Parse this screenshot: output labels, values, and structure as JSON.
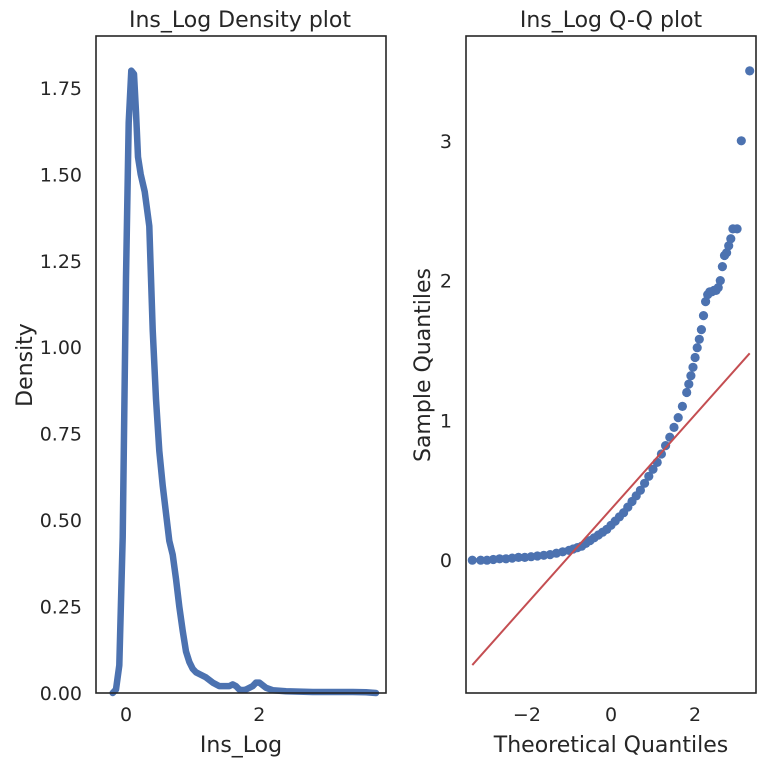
{
  "chart_data": [
    {
      "type": "line",
      "title": "Ins_Log Density plot",
      "xlabel": "Ins_Log",
      "ylabel": "Density",
      "xlim": [
        -0.45,
        3.9
      ],
      "ylim": [
        0,
        1.9
      ],
      "xticks": [
        0,
        2
      ],
      "xtick_labels": [
        "0",
        "2"
      ],
      "yticks": [
        0,
        0.25,
        0.5,
        0.75,
        1.0,
        1.25,
        1.5,
        1.75
      ],
      "ytick_labels": [
        "0.00",
        "0.25",
        "0.50",
        "0.75",
        "1.00",
        "1.25",
        "1.50",
        "1.75"
      ],
      "grid": false,
      "line_color": "#4c72b0",
      "series": [
        {
          "x": [
            -0.2,
            -0.15,
            -0.1,
            -0.05,
            0,
            0.04,
            0.08,
            0.12,
            0.15,
            0.18,
            0.22,
            0.28,
            0.35,
            0.4,
            0.45,
            0.5,
            0.55,
            0.6,
            0.65,
            0.7,
            0.75,
            0.8,
            0.85,
            0.9,
            0.95,
            1.0,
            1.05,
            1.1,
            1.2,
            1.3,
            1.4,
            1.5,
            1.55,
            1.6,
            1.65,
            1.7,
            1.75,
            1.8,
            1.9,
            1.95,
            2.0,
            2.1,
            2.2,
            2.4,
            2.6,
            2.8,
            3.0,
            3.2,
            3.4,
            3.6,
            3.75
          ],
          "y": [
            0,
            0.01,
            0.08,
            0.45,
            1.2,
            1.65,
            1.8,
            1.79,
            1.68,
            1.55,
            1.5,
            1.45,
            1.35,
            1.05,
            0.85,
            0.7,
            0.6,
            0.52,
            0.44,
            0.4,
            0.33,
            0.25,
            0.18,
            0.12,
            0.09,
            0.07,
            0.06,
            0.055,
            0.045,
            0.03,
            0.02,
            0.02,
            0.02,
            0.025,
            0.02,
            0.01,
            0.008,
            0.01,
            0.02,
            0.03,
            0.03,
            0.015,
            0.008,
            0.005,
            0.004,
            0.003,
            0.003,
            0.003,
            0.003,
            0.002,
            0.0
          ]
        }
      ]
    },
    {
      "type": "scatter",
      "title": "Ins_Log Q-Q plot",
      "xlabel": "Theoretical Quantiles",
      "ylabel": "Sample Quantiles",
      "xlim": [
        -3.45,
        3.45
      ],
      "ylim": [
        -0.95,
        3.75
      ],
      "xticks": [
        -2,
        0,
        2
      ],
      "xtick_labels": [
        "−2",
        "0",
        "2"
      ],
      "yticks": [
        0,
        1,
        2,
        3
      ],
      "ytick_labels": [
        "0",
        "1",
        "2",
        "3"
      ],
      "grid": false,
      "point_color": "#4c72b0",
      "reference_line": {
        "color": "#c44e52",
        "x": [
          -3.3,
          3.3
        ],
        "y": [
          -0.75,
          1.48
        ]
      },
      "points": {
        "x": [
          -3.3,
          -3.1,
          -2.95,
          -2.8,
          -2.65,
          -2.5,
          -2.35,
          -2.2,
          -2.05,
          -1.9,
          -1.75,
          -1.6,
          -1.45,
          -1.3,
          -1.15,
          -1.0,
          -0.9,
          -0.8,
          -0.7,
          -0.6,
          -0.5,
          -0.4,
          -0.3,
          -0.2,
          -0.1,
          0.0,
          0.1,
          0.2,
          0.3,
          0.4,
          0.5,
          0.6,
          0.7,
          0.8,
          0.9,
          1.0,
          1.1,
          1.2,
          1.3,
          1.4,
          1.5,
          1.6,
          1.7,
          1.8,
          1.85,
          1.9,
          1.95,
          2.0,
          2.05,
          2.1,
          2.15,
          2.2,
          2.25,
          2.3,
          2.35,
          2.4,
          2.45,
          2.5,
          2.55,
          2.6,
          2.65,
          2.7,
          2.75,
          2.8,
          2.85,
          2.9,
          3.0,
          3.1,
          3.3
        ],
        "y": [
          0.0,
          0.0,
          0.0,
          0.005,
          0.01,
          0.01,
          0.015,
          0.02,
          0.02,
          0.025,
          0.03,
          0.035,
          0.04,
          0.05,
          0.06,
          0.07,
          0.08,
          0.09,
          0.1,
          0.12,
          0.14,
          0.16,
          0.18,
          0.2,
          0.22,
          0.25,
          0.28,
          0.31,
          0.34,
          0.38,
          0.42,
          0.46,
          0.5,
          0.55,
          0.6,
          0.65,
          0.7,
          0.76,
          0.82,
          0.88,
          0.95,
          1.02,
          1.1,
          1.2,
          1.26,
          1.32,
          1.38,
          1.45,
          1.52,
          1.58,
          1.65,
          1.75,
          1.85,
          1.9,
          1.92,
          1.92,
          1.93,
          1.93,
          1.95,
          2.0,
          2.1,
          2.18,
          2.2,
          2.25,
          2.3,
          2.37,
          2.37,
          3.0,
          3.5
        ]
      }
    }
  ]
}
